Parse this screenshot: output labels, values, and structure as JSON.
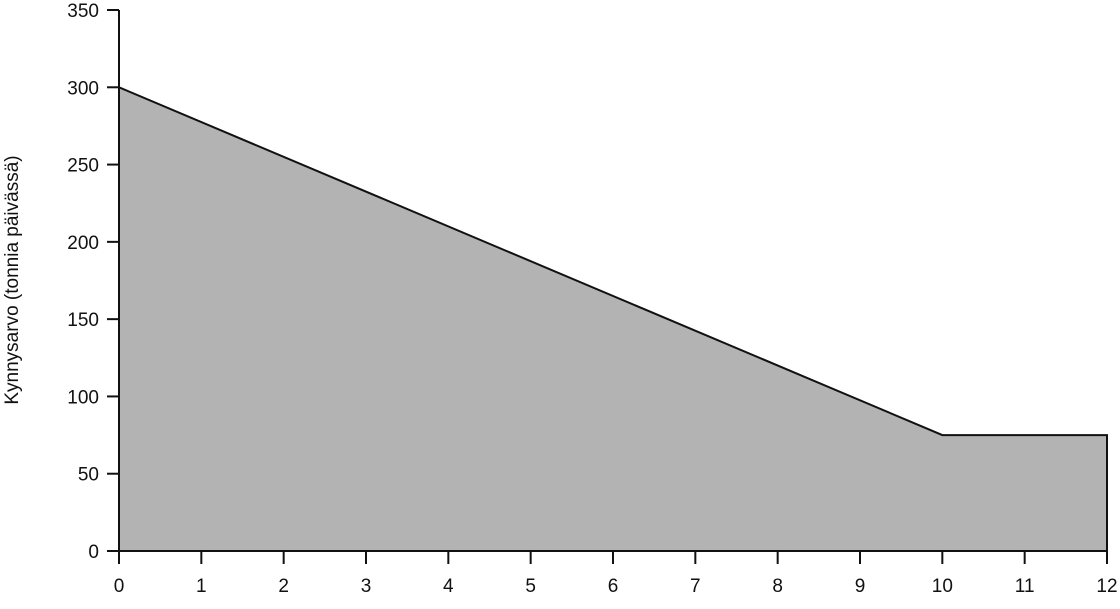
{
  "chart_data": {
    "type": "area",
    "title": "",
    "xlabel": "",
    "ylabel": "Kynnysarvo (tonnia päivässä)",
    "xlim": [
      0,
      12
    ],
    "ylim": [
      0,
      350
    ],
    "x_ticks": [
      "0",
      "1",
      "2",
      "3",
      "4",
      "5",
      "6",
      "7",
      "8",
      "9",
      "10",
      "11",
      "12"
    ],
    "y_ticks": [
      "0",
      "50",
      "100",
      "150",
      "200",
      "250",
      "300",
      "350"
    ],
    "grid": false,
    "legend": "none",
    "series": [
      {
        "x": [
          0,
          10,
          12
        ],
        "y": [
          300,
          75,
          75
        ]
      }
    ],
    "colors": {
      "fill": "#b3b3b3",
      "line": "#111111"
    }
  }
}
